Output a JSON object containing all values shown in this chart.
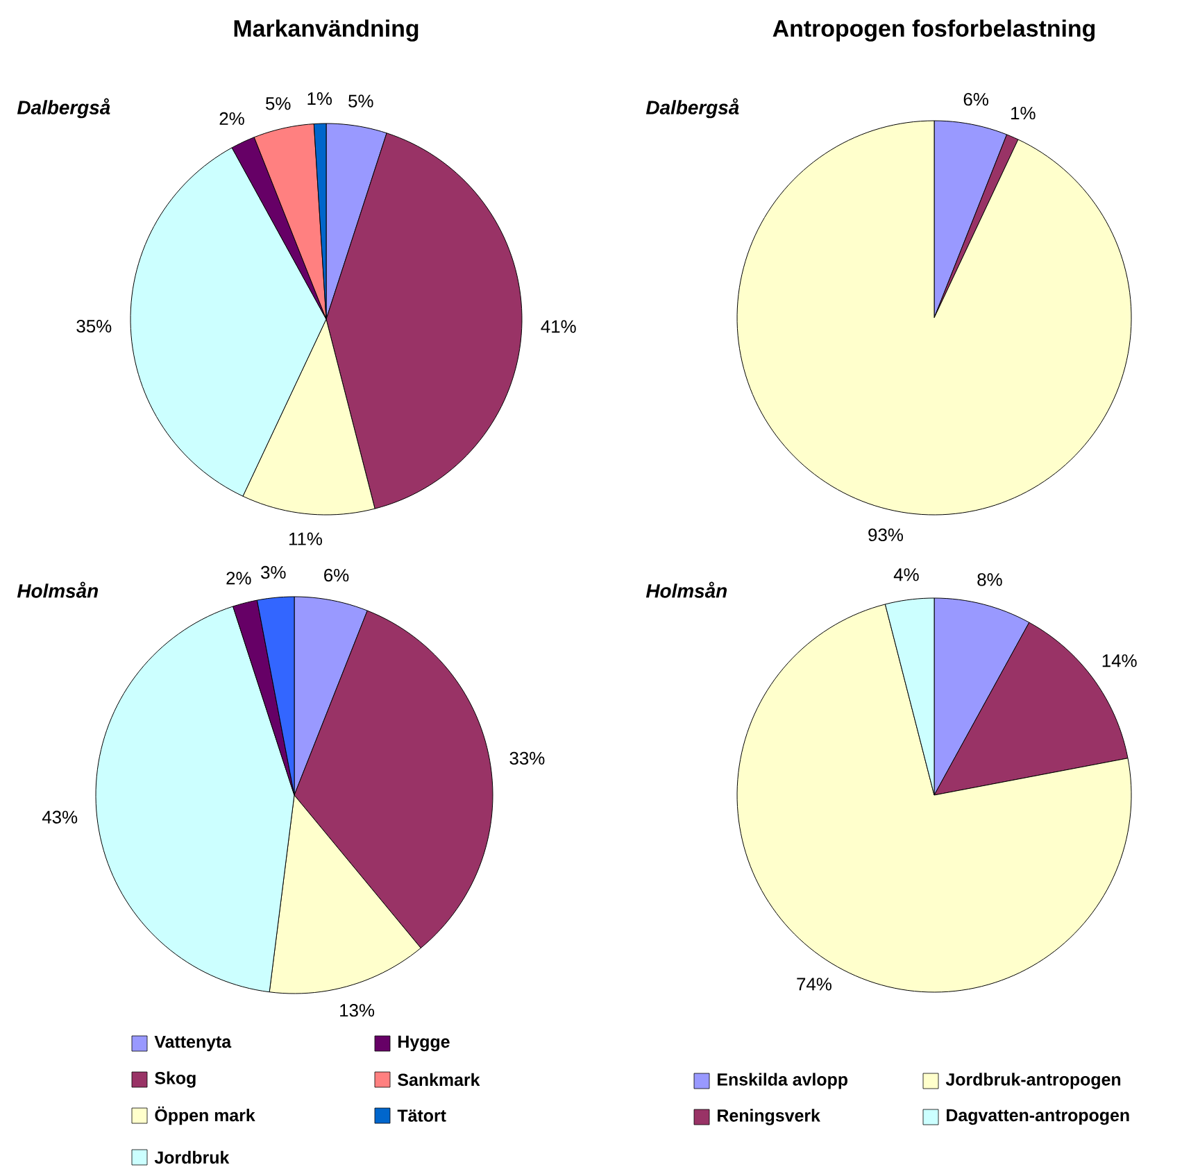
{
  "chart_data": [
    {
      "type": "pie",
      "title": "Markanvändning",
      "subtitle": "Dalbergså",
      "categories": [
        "Vattenyta",
        "Skog",
        "Öppen mark",
        "Jordbruk",
        "Hygge",
        "Sankmark",
        "Tätort"
      ],
      "values": [
        5,
        41,
        11,
        35,
        2,
        5,
        1
      ],
      "value_labels": [
        "5%",
        "41%",
        "11%",
        "35%",
        "2%",
        "5%",
        "1%"
      ],
      "colors": [
        "#9999ff",
        "#993366",
        "#ffffcc",
        "#ccffff",
        "#660066",
        "#ff8080",
        "#0066cc"
      ],
      "legend": "bottom"
    },
    {
      "type": "pie",
      "subtitle": "Holmsån",
      "categories": [
        null,
        null,
        null,
        null,
        null,
        null,
        null
      ],
      "values": [
        6,
        33,
        13,
        43,
        2,
        0,
        3
      ],
      "value_labels": [
        "6%",
        "33%",
        "13%",
        "43%",
        "2%",
        null,
        "3%"
      ],
      "colors": [
        "#9999ff",
        "#993366",
        "#ffffcc",
        "#ccffff",
        "#660066",
        "#ff8080",
        "#3366ff"
      ]
    },
    {
      "type": "pie",
      "title": "Antropogen fosforbelastning",
      "subtitle": "Dalbergså",
      "categories": [
        "Enskilda avlopp",
        "Reningsverk",
        "Jordbruk-antropogen",
        "Dagvatten-antropogen"
      ],
      "values": [
        6,
        1,
        93,
        0
      ],
      "value_labels": [
        "6%",
        "1%",
        "93%",
        null
      ],
      "colors": [
        "#9999ff",
        "#993366",
        "#ffffcc",
        "#ccffff"
      ],
      "legend": "bottom"
    },
    {
      "type": "pie",
      "subtitle": "Holmsån",
      "categories": [
        null,
        null,
        null,
        null
      ],
      "values": [
        8,
        14,
        74,
        4
      ],
      "value_labels": [
        "8%",
        "14%",
        "74%",
        "4%"
      ],
      "colors": [
        "#9999ff",
        "#993366",
        "#ffffcc",
        "#ccffff"
      ]
    }
  ]
}
